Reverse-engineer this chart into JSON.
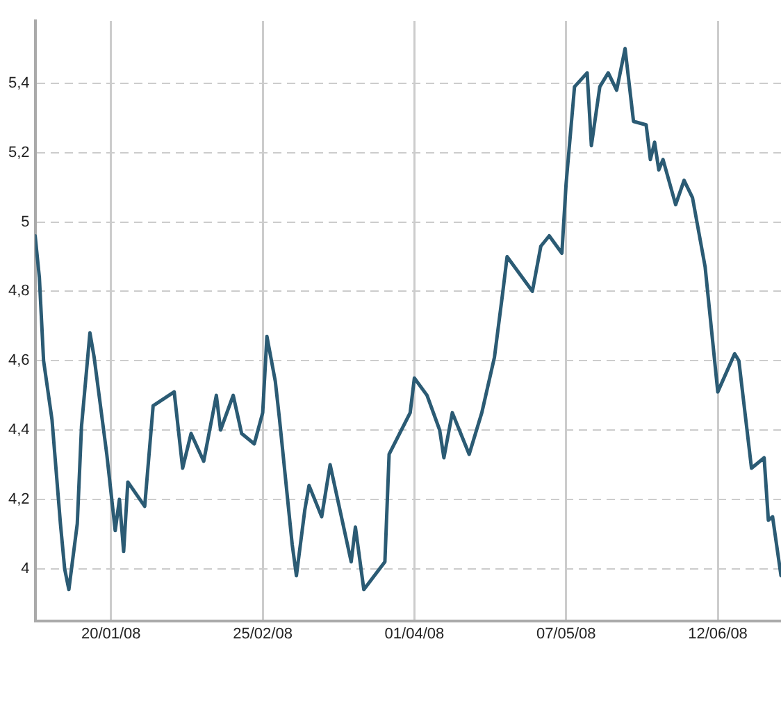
{
  "chart_data": {
    "type": "line",
    "color": "#2b5b74",
    "x": [
      "2008-01-02",
      "2008-01-03",
      "2008-01-04",
      "2008-01-06",
      "2008-01-08",
      "2008-01-09",
      "2008-01-10",
      "2008-01-12",
      "2008-01-13",
      "2008-01-15",
      "2008-01-16",
      "2008-01-19",
      "2008-01-21",
      "2008-01-22",
      "2008-01-23",
      "2008-01-24",
      "2008-01-28",
      "2008-01-30",
      "2008-02-04",
      "2008-02-06",
      "2008-02-08",
      "2008-02-11",
      "2008-02-14",
      "2008-02-15",
      "2008-02-18",
      "2008-02-20",
      "2008-02-23",
      "2008-02-25",
      "2008-02-26",
      "2008-02-28",
      "2008-02-29",
      "2008-03-03",
      "2008-03-04",
      "2008-03-06",
      "2008-03-07",
      "2008-03-10",
      "2008-03-12",
      "2008-03-17",
      "2008-03-18",
      "2008-03-20",
      "2008-03-25",
      "2008-03-26",
      "2008-03-31",
      "2008-04-01",
      "2008-04-04",
      "2008-04-07",
      "2008-04-08",
      "2008-04-10",
      "2008-04-14",
      "2008-04-17",
      "2008-04-20",
      "2008-04-22",
      "2008-04-23",
      "2008-04-29",
      "2008-05-01",
      "2008-05-03",
      "2008-05-06",
      "2008-05-07",
      "2008-05-09",
      "2008-05-12",
      "2008-05-13",
      "2008-05-15",
      "2008-05-17",
      "2008-05-19",
      "2008-05-21",
      "2008-05-23",
      "2008-05-26",
      "2008-05-27",
      "2008-05-28",
      "2008-05-29",
      "2008-05-30",
      "2008-06-02",
      "2008-06-04",
      "2008-06-06",
      "2008-06-09",
      "2008-06-12",
      "2008-06-16",
      "2008-06-17",
      "2008-06-20",
      "2008-06-23",
      "2008-06-24",
      "2008-06-25",
      "2008-06-27"
    ],
    "values": [
      4.96,
      4.84,
      4.6,
      4.43,
      4.13,
      4.0,
      3.94,
      4.13,
      4.41,
      4.68,
      4.61,
      4.33,
      4.11,
      4.2,
      4.05,
      4.25,
      4.18,
      4.47,
      4.51,
      4.29,
      4.39,
      4.31,
      4.5,
      4.4,
      4.5,
      4.39,
      4.36,
      4.45,
      4.67,
      4.54,
      4.43,
      4.07,
      3.98,
      4.17,
      4.24,
      4.15,
      4.3,
      4.02,
      4.12,
      3.94,
      4.02,
      4.33,
      4.45,
      4.55,
      4.5,
      4.4,
      4.32,
      4.45,
      4.33,
      4.45,
      4.61,
      4.8,
      4.9,
      4.8,
      4.93,
      4.96,
      4.91,
      5.11,
      5.39,
      5.43,
      5.22,
      5.39,
      5.43,
      5.38,
      5.5,
      5.29,
      5.28,
      5.18,
      5.23,
      5.15,
      5.18,
      5.05,
      5.12,
      5.07,
      4.87,
      4.51,
      4.62,
      4.6,
      4.29,
      4.32,
      4.14,
      4.15,
      3.98
    ],
    "xlim": [
      "2008-01-02",
      "2008-06-27"
    ],
    "xticks": [
      {
        "value": "2008-01-20",
        "label": "20/01/08"
      },
      {
        "value": "2008-02-25",
        "label": "25/02/08"
      },
      {
        "value": "2008-04-01",
        "label": "01/04/08"
      },
      {
        "value": "2008-05-07",
        "label": "07/05/08"
      },
      {
        "value": "2008-06-12",
        "label": "12/06/08"
      }
    ],
    "ylim": [
      3.85,
      5.58
    ],
    "yticks": [
      4,
      {
        "value": 4.2,
        "label": "4,2"
      },
      {
        "value": 4.4,
        "label": "4,4"
      },
      {
        "value": 4.6,
        "label": "4,6"
      },
      {
        "value": 4.8,
        "label": "4,8"
      },
      5,
      {
        "value": 5.2,
        "label": "5,2"
      },
      {
        "value": 5.4,
        "label": "5,4"
      }
    ],
    "grid": true,
    "marker": "none",
    "line_style": "solid"
  }
}
